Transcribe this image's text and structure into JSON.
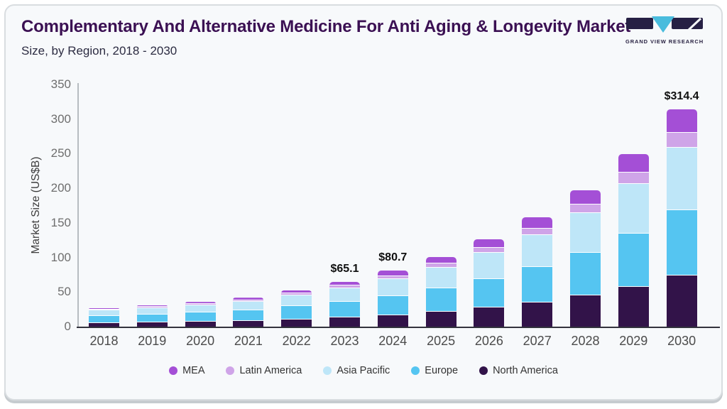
{
  "header": {
    "title": "Complementary And Alternative Medicine For Anti Aging & Longevity Market",
    "subtitle": "Size, by Region, 2018 - 2030"
  },
  "logo": {
    "text": "GRAND VIEW RESEARCH",
    "mark_dark": "#262044",
    "mark_accent": "#49bcdd"
  },
  "colors": {
    "card_bg": "#f7f9fb",
    "title": "#3b1053",
    "axis_line": "#33333d",
    "tick_text": "#6e6e6e"
  },
  "chart_data": {
    "type": "bar",
    "stacked": true,
    "title": "Complementary And Alternative Medicine For Anti Aging & Longevity Market Size, by Region, 2018 - 2030",
    "ylabel": "Market Size (US$B)",
    "ylim": [
      0,
      350
    ],
    "ytick_step": 50,
    "grid": false,
    "legend_position": "bottom",
    "categories": [
      "2018",
      "2019",
      "2020",
      "2021",
      "2022",
      "2023",
      "2024",
      "2025",
      "2026",
      "2027",
      "2028",
      "2029",
      "2030"
    ],
    "series": [
      {
        "name": "North America",
        "color": "#321349",
        "values": [
          5.0,
          5.9,
          6.9,
          8.3,
          10.6,
          13.4,
          16.9,
          21.6,
          27.6,
          35.1,
          44.7,
          57.5,
          73.9
        ]
      },
      {
        "name": "Europe",
        "color": "#55c5f1",
        "values": [
          10.3,
          11.7,
          13.3,
          15.3,
          18.7,
          22.8,
          27.7,
          34.0,
          41.6,
          50.9,
          62.3,
          77.0,
          94.9
        ]
      },
      {
        "name": "Asia Pacific",
        "color": "#bee6f8",
        "values": [
          8.3,
          9.5,
          11.0,
          12.7,
          15.8,
          19.6,
          24.1,
          30.0,
          37.2,
          46.2,
          57.4,
          72.0,
          90.2
        ]
      },
      {
        "name": "Latin America",
        "color": "#cfa4e8",
        "values": [
          1.2,
          1.4,
          1.7,
          2.1,
          2.7,
          3.5,
          4.5,
          5.8,
          7.5,
          9.7,
          12.5,
          16.2,
          21.1
        ]
      },
      {
        "name": "MEA",
        "color": "#a44fd6",
        "values": [
          2.0,
          2.4,
          2.9,
          3.5,
          4.6,
          5.8,
          7.5,
          9.6,
          12.3,
          15.9,
          20.4,
          26.6,
          34.3
        ]
      }
    ],
    "totals": [
      26.8,
      30.9,
      35.8,
      41.9,
      52.4,
      65.1,
      80.7,
      101.0,
      126.2,
      157.8,
      197.3,
      249.3,
      314.4
    ],
    "total_labels": {
      "2023": "$65.1",
      "2024": "$80.7",
      "2030": "$314.4"
    },
    "legend": [
      "MEA",
      "Latin America",
      "Asia Pacific",
      "Europe",
      "North America"
    ]
  }
}
